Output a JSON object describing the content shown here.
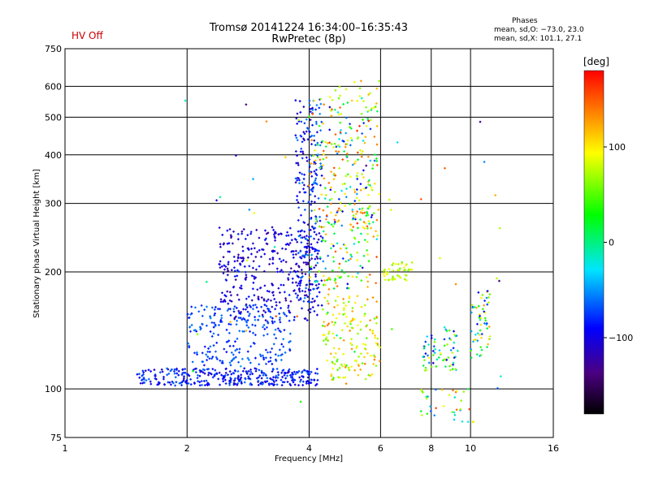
{
  "header": {
    "hv_status": "HV Off",
    "title_line1": "Tromsø 20141224 16:34:00–16:35:43",
    "title_line2": "RwPretec (8p)"
  },
  "phases": {
    "heading": "Phases",
    "o_line": "mean, sd,O: −73.0, 23.0",
    "x_line": "mean, sd,X: 101.1, 27.1"
  },
  "colorbar": {
    "title": "[deg]",
    "min": -180,
    "max": 180,
    "ticks": [
      {
        "value": 100,
        "label": "100"
      },
      {
        "value": 0,
        "label": "0"
      },
      {
        "value": -100,
        "label": "−100"
      }
    ]
  },
  "chart_data": {
    "type": "scatter",
    "title": "Tromsø 20141224 16:34:00–16:35:43",
    "subtitle": "RwPretec (8p)",
    "xlabel": "Frequency [MHz]",
    "ylabel": "Stationary phase Virtual Height [km]",
    "xscale": "log",
    "yscale": "log",
    "xlim": [
      1,
      16
    ],
    "ylim": [
      75,
      750
    ],
    "xticks": [
      1,
      2,
      4,
      6,
      8,
      10,
      16
    ],
    "yticks": [
      75,
      100,
      200,
      300,
      400,
      500,
      600,
      750
    ],
    "grid": true,
    "color_variable": "phase [deg]",
    "clusters": [
      {
        "region": "E-layer trace",
        "x_range": [
          1.5,
          4.2
        ],
        "y_range": [
          102,
          113
        ],
        "phase_range": [
          -110,
          -60
        ],
        "count": 340
      },
      {
        "region": "low F echo band",
        "x_range": [
          2.0,
          3.6
        ],
        "y_range": [
          115,
          165
        ],
        "phase_range": [
          -90,
          -55
        ],
        "count": 230
      },
      {
        "region": "F-layer trace",
        "x_range": [
          2.4,
          4.2
        ],
        "y_range": [
          150,
          260
        ],
        "phase_range": [
          -130,
          -80
        ],
        "count": 330
      },
      {
        "region": "vertical spread at 4 MHz",
        "x_range": [
          3.7,
          4.3
        ],
        "y_range": [
          160,
          560
        ],
        "phase_range": [
          -120,
          -50
        ],
        "count": 240
      },
      {
        "region": "spread F upper",
        "x_range": [
          4.0,
          5.9
        ],
        "y_range": [
          180,
          560
        ],
        "phase_range": [
          -110,
          160
        ],
        "count": 300
      },
      {
        "region": "high-frequency echoes",
        "x_range": [
          4.3,
          6.0
        ],
        "y_range": [
          105,
          175
        ],
        "phase_range": [
          40,
          140
        ],
        "count": 160
      },
      {
        "region": "upper spread at 4.5-6 MHz",
        "x_range": [
          4.5,
          6.0
        ],
        "y_range": [
          250,
          620
        ],
        "phase_range": [
          60,
          170
        ],
        "count": 80
      },
      {
        "region": "cluster near 6.5 MHz",
        "x_range": [
          6.1,
          7.2
        ],
        "y_range": [
          190,
          212
        ],
        "phase_range": [
          50,
          100
        ],
        "count": 45
      },
      {
        "region": "8-9 MHz echoes",
        "x_range": [
          7.6,
          9.3
        ],
        "y_range": [
          110,
          145
        ],
        "phase_range": [
          -110,
          100
        ],
        "count": 70
      },
      {
        "region": "10-11 MHz echoes",
        "x_range": [
          10.0,
          11.2
        ],
        "y_range": [
          120,
          180
        ],
        "phase_range": [
          -100,
          130
        ],
        "count": 60
      },
      {
        "region": "low heights near 8-10 MHz",
        "x_range": [
          7.5,
          10.5
        ],
        "y_range": [
          82,
          100
        ],
        "phase_range": [
          -80,
          160
        ],
        "count": 35
      },
      {
        "region": "isolated points",
        "x_range": [
          1.75,
          12.5
        ],
        "y_range": [
          80,
          560
        ],
        "phase_range": [
          -150,
          160
        ],
        "count": 50
      }
    ]
  }
}
